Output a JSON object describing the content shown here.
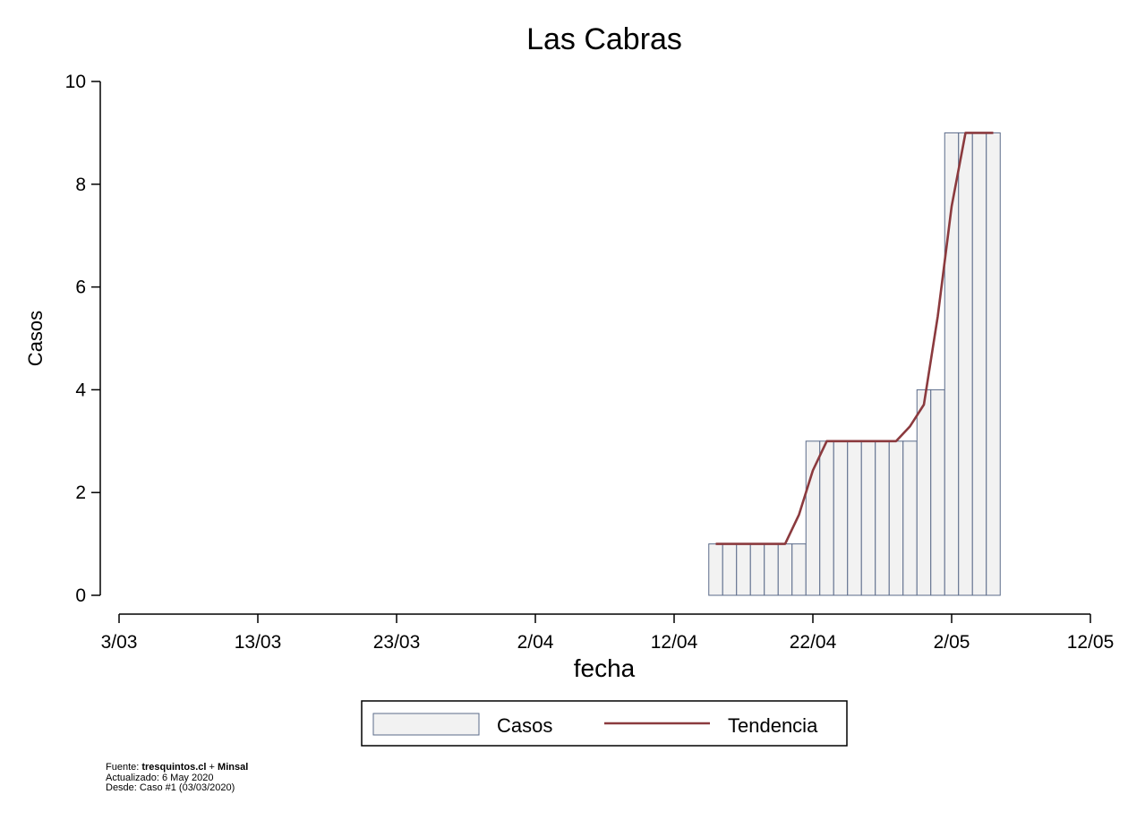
{
  "chart_data": {
    "type": "bar",
    "title": "Las Cabras",
    "xlabel": "fecha",
    "ylabel": "Casos",
    "ylim": [
      0,
      10
    ],
    "yticks": [
      0,
      2,
      4,
      6,
      8,
      10
    ],
    "x_axis_range": [
      "2020-03-03",
      "2020-05-12"
    ],
    "x_ticks": [
      {
        "date": "2020-03-03",
        "label": "3/03"
      },
      {
        "date": "2020-03-13",
        "label": "13/03"
      },
      {
        "date": "2020-03-23",
        "label": "23/03"
      },
      {
        "date": "2020-04-02",
        "label": "2/04"
      },
      {
        "date": "2020-04-12",
        "label": "12/04"
      },
      {
        "date": "2020-04-22",
        "label": "22/04"
      },
      {
        "date": "2020-05-02",
        "label": "2/05"
      },
      {
        "date": "2020-05-12",
        "label": "12/05"
      }
    ],
    "grid": false,
    "legend_position": "bottom",
    "series": [
      {
        "name": "Casos",
        "kind": "bar",
        "color": "#f2f2f2",
        "edge_color": "#5b6b8a",
        "x": [
          "2020-04-15",
          "2020-04-16",
          "2020-04-17",
          "2020-04-18",
          "2020-04-19",
          "2020-04-20",
          "2020-04-21",
          "2020-04-22",
          "2020-04-23",
          "2020-04-24",
          "2020-04-25",
          "2020-04-26",
          "2020-04-27",
          "2020-04-28",
          "2020-04-29",
          "2020-04-30",
          "2020-05-01",
          "2020-05-02",
          "2020-05-03",
          "2020-05-04",
          "2020-05-05"
        ],
        "values": [
          1,
          1,
          1,
          1,
          1,
          1,
          1,
          3,
          3,
          3,
          3,
          3,
          3,
          3,
          3,
          4,
          4,
          9,
          9,
          9,
          9
        ]
      },
      {
        "name": "Tendencia",
        "kind": "line",
        "color": "#8b3a3e",
        "x": [
          "2020-04-15",
          "2020-04-16",
          "2020-04-17",
          "2020-04-18",
          "2020-04-19",
          "2020-04-20",
          "2020-04-21",
          "2020-04-22",
          "2020-04-23",
          "2020-04-24",
          "2020-04-25",
          "2020-04-26",
          "2020-04-27",
          "2020-04-28",
          "2020-04-29",
          "2020-04-30",
          "2020-05-01",
          "2020-05-02",
          "2020-05-03",
          "2020-05-04",
          "2020-05-05"
        ],
        "values": [
          1,
          1,
          1,
          1,
          1,
          1,
          1.57,
          2.43,
          3,
          3,
          3,
          3,
          3,
          3,
          3.29,
          3.71,
          5.43,
          7.57,
          9,
          9,
          9
        ]
      }
    ]
  },
  "footer": {
    "source_prefix": "Fuente: ",
    "source_site": "tresquintos.cl",
    "source_join": " + ",
    "source_org": "Minsal",
    "updated": "Actualizado: 6 May 2020",
    "since": "Desde: Caso #1   (03/03/2020)"
  }
}
